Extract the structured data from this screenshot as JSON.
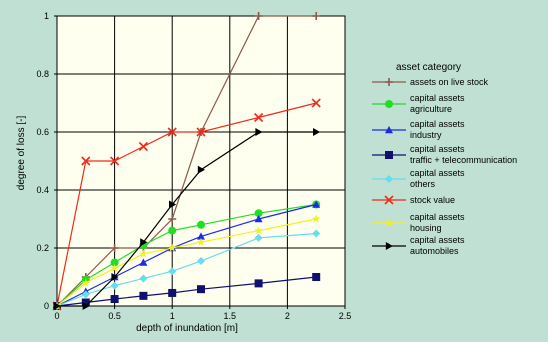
{
  "chart_data": {
    "type": "line",
    "xlabel": "depth of inundation [m]",
    "ylabel": "degree of loss  [-]",
    "xlim": [
      0,
      2.5
    ],
    "ylim": [
      0,
      1
    ],
    "x_ticks": [
      "0",
      "0.5",
      "1",
      "1.5",
      "2",
      "2.5"
    ],
    "y_ticks": [
      "0",
      "0.2",
      "0.4",
      "0.6",
      "0.8",
      "1"
    ],
    "grid": true,
    "legend": {
      "title": "asset category",
      "placement": "right-outside"
    },
    "series": [
      {
        "key": "livestock",
        "legend": [
          "assets on live stock"
        ],
        "color": "#8b5a4a",
        "marker": "plus",
        "x": [
          0,
          0.25,
          0.5,
          0.75,
          1,
          1.25,
          1.75,
          2.25
        ],
        "y": [
          0,
          0.1,
          0.2,
          0.2,
          0.3,
          0.6,
          1.0,
          1.0
        ]
      },
      {
        "key": "agriculture",
        "legend": [
          "capital assets",
          "agriculture"
        ],
        "color": "#22dd22",
        "marker": "circle",
        "x": [
          0,
          0.25,
          0.5,
          0.75,
          1,
          1.25,
          1.75,
          2.25
        ],
        "y": [
          0,
          0.09,
          0.15,
          0.21,
          0.26,
          0.28,
          0.32,
          0.35
        ]
      },
      {
        "key": "industry",
        "legend": [
          "capital assets",
          "industry"
        ],
        "color": "#1a2ae8",
        "marker": "triangle-up",
        "x": [
          0,
          0.25,
          0.5,
          0.75,
          1,
          1.25,
          1.75,
          2.25
        ],
        "y": [
          0,
          0.05,
          0.1,
          0.15,
          0.2,
          0.24,
          0.3,
          0.35
        ]
      },
      {
        "key": "traffic",
        "legend": [
          "capital assets",
          "traffic + telecommunication"
        ],
        "color": "#101070",
        "marker": "square",
        "x": [
          0,
          0.25,
          0.5,
          0.75,
          1,
          1.25,
          1.75,
          2.25
        ],
        "y": [
          0,
          0.012,
          0.024,
          0.035,
          0.045,
          0.058,
          0.078,
          0.1
        ]
      },
      {
        "key": "others",
        "legend": [
          "capital assets",
          "others"
        ],
        "color": "#66ddee",
        "marker": "diamond",
        "x": [
          0,
          0.25,
          0.5,
          0.75,
          1,
          1.25,
          1.75,
          2.25
        ],
        "y": [
          0,
          0.04,
          0.07,
          0.095,
          0.12,
          0.155,
          0.235,
          0.25
        ]
      },
      {
        "key": "stock",
        "legend": [
          "stock value"
        ],
        "color": "#ee2a1a",
        "marker": "x",
        "x": [
          0,
          0.25,
          0.5,
          0.75,
          1,
          1.25,
          1.75,
          2.25
        ],
        "y": [
          0,
          0.5,
          0.5,
          0.55,
          0.6,
          0.6,
          0.65,
          0.7
        ]
      },
      {
        "key": "housing",
        "legend": [
          "capital assets",
          "housing"
        ],
        "color": "#f2f020",
        "marker": "star",
        "x": [
          0,
          0.25,
          0.5,
          0.75,
          1,
          1.25,
          1.75,
          2.25
        ],
        "y": [
          0,
          0.08,
          0.13,
          0.18,
          0.2,
          0.22,
          0.26,
          0.3
        ]
      },
      {
        "key": "automobiles",
        "legend": [
          "capital assets",
          "automobiles"
        ],
        "color": "#000000",
        "marker": "triangle-right",
        "x": [
          0,
          0.25,
          0.5,
          0.75,
          1,
          1.25,
          1.75,
          2.25
        ],
        "y": [
          0,
          0,
          0.1,
          0.22,
          0.35,
          0.47,
          0.6,
          0.6
        ]
      }
    ]
  }
}
